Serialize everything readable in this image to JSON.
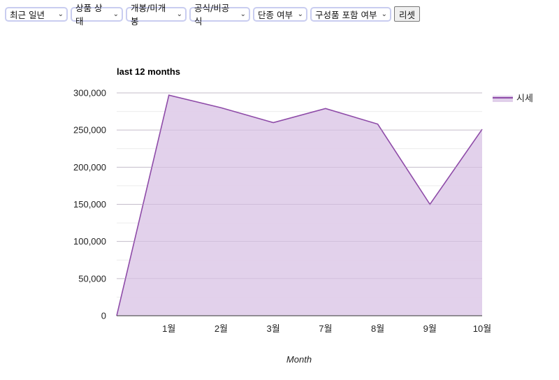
{
  "filters": [
    {
      "value": "최근 일년"
    },
    {
      "value": "상품 상태"
    },
    {
      "value": "개봉/미개봉"
    },
    {
      "value": "공식/비공식"
    },
    {
      "value": "단종 여부"
    },
    {
      "value": "구성품 포함 여부"
    }
  ],
  "reset_label": "리셋",
  "colors": {
    "series_line": "#8e4ba8",
    "series_fill": "#e0cfea",
    "grid": "#cccccc",
    "minor_grid": "#ececec"
  },
  "chart_data": {
    "type": "area",
    "title": "last 12 months",
    "xlabel": "Month",
    "ylabel": "",
    "x": [
      "",
      "1월",
      "2월",
      "3월",
      "7월",
      "8월",
      "9월",
      "10월"
    ],
    "series": [
      {
        "name": "시세",
        "values": [
          0,
          297000,
          280000,
          260000,
          279000,
          258000,
          150000,
          251000
        ]
      }
    ],
    "ylim": [
      0,
      300000
    ],
    "yticks": [
      "0",
      "50,000",
      "100,000",
      "150,000",
      "200,000",
      "250,000",
      "300,000"
    ],
    "grid": true,
    "legend": "right"
  }
}
